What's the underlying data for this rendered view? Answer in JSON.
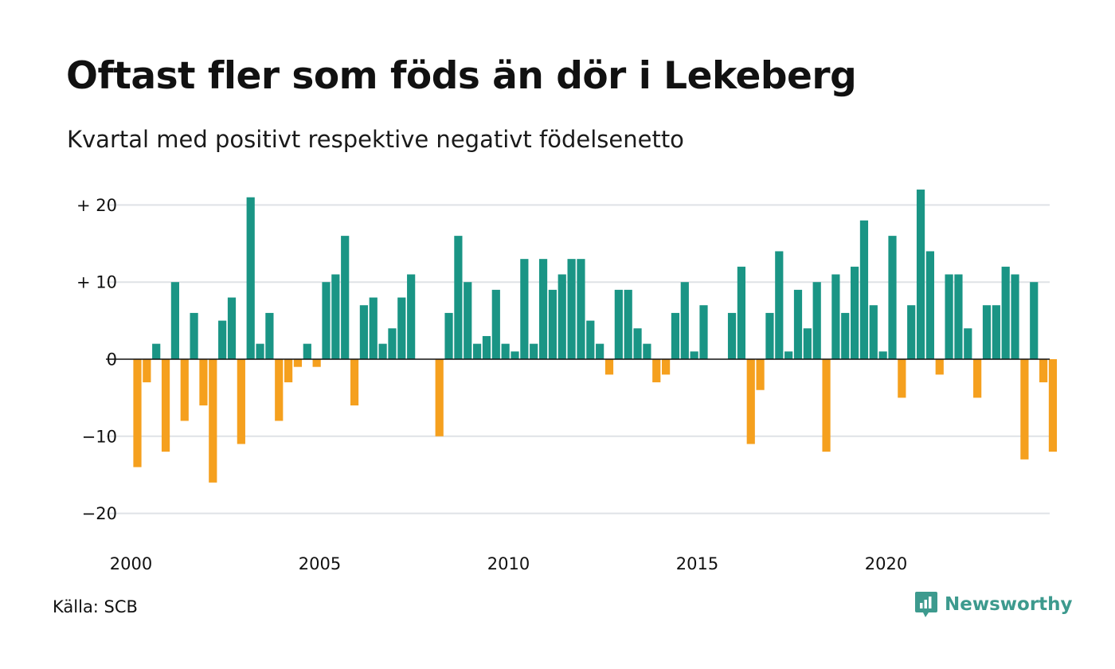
{
  "header": {
    "title": "Oftast fler som föds än dör i Lekeberg",
    "subtitle": "Kvartal med positivt respektive negativt födelsenetto"
  },
  "footer": {
    "source": "Källa: SCB",
    "brand": "Newsworthy",
    "brand_icon": "newsworthy-logo-icon"
  },
  "colors": {
    "positive": "#1a9585",
    "negative": "#f5a01e",
    "grid": "#dfe2e6",
    "baseline": "#111111",
    "brand": "#3d9a8e"
  },
  "chart_data": {
    "type": "bar",
    "title": "Oftast fler som föds än dör i Lekeberg",
    "subtitle": "Kvartal med positivt respektive negativt födelsenetto",
    "xlabel": "",
    "ylabel": "",
    "ylim": [
      -20,
      22
    ],
    "yticks": [
      {
        "value": 20,
        "label": "+ 20"
      },
      {
        "value": 10,
        "label": "+ 10"
      },
      {
        "value": 0,
        "label": "0"
      },
      {
        "value": -10,
        "label": "−10"
      },
      {
        "value": -20,
        "label": "−20"
      }
    ],
    "xticks": [
      {
        "year": 2000,
        "label": "2000"
      },
      {
        "year": 2005,
        "label": "2005"
      },
      {
        "year": 2010,
        "label": "2010"
      },
      {
        "year": 2015,
        "label": "2015"
      },
      {
        "year": 2020,
        "label": "2020"
      }
    ],
    "start_year": 2000,
    "periods_per_year": 4,
    "grid": true,
    "values": [
      -14,
      -3,
      2,
      -12,
      10,
      -8,
      6,
      -6,
      -16,
      5,
      8,
      -11,
      21,
      2,
      6,
      -8,
      -3,
      -1,
      2,
      -1,
      10,
      11,
      16,
      -6,
      7,
      8,
      2,
      4,
      8,
      11,
      0,
      0,
      -10,
      6,
      16,
      10,
      2,
      3,
      9,
      2,
      1,
      13,
      2,
      13,
      9,
      11,
      13,
      13,
      5,
      2,
      -2,
      9,
      9,
      4,
      2,
      -3,
      -2,
      6,
      10,
      1,
      7,
      0,
      0,
      6,
      12,
      -11,
      -4,
      6,
      14,
      1,
      9,
      4,
      10,
      -12,
      11,
      6,
      12,
      18,
      7,
      1,
      16,
      -5,
      7,
      22,
      14,
      -2,
      11,
      11,
      4,
      -5,
      7,
      7,
      12,
      11,
      -13,
      10,
      -3,
      -12
    ]
  }
}
